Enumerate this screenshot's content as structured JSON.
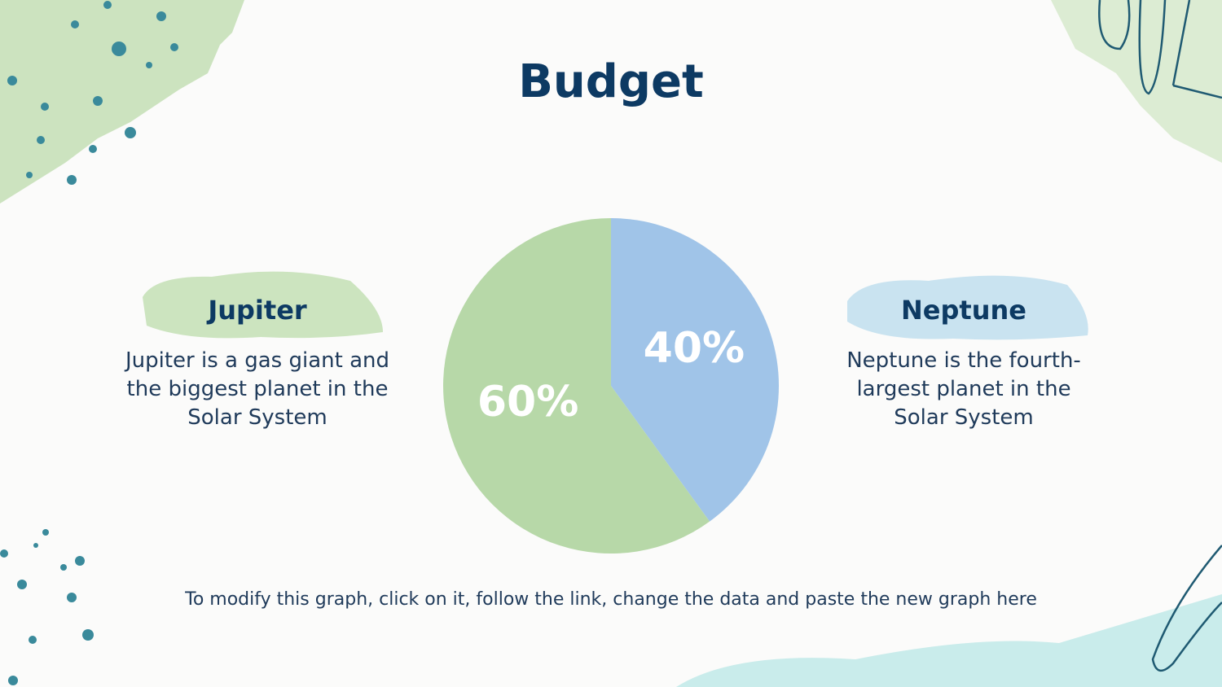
{
  "chart_data": {
    "type": "pie",
    "title": "Budget",
    "categories": [
      "Neptune",
      "Jupiter"
    ],
    "values": [
      40,
      60
    ],
    "value_labels": [
      "40%",
      "60%"
    ],
    "colors": [
      "#a0c4e8",
      "#b7d8a8"
    ],
    "category_descriptions": [
      "Neptune is the fourth-largest planet in the Solar System",
      "Jupiter is a gas giant and the biggest planet in the Solar System"
    ]
  },
  "note": "To modify this graph, click on it, follow the link, change the data and paste the new graph here"
}
